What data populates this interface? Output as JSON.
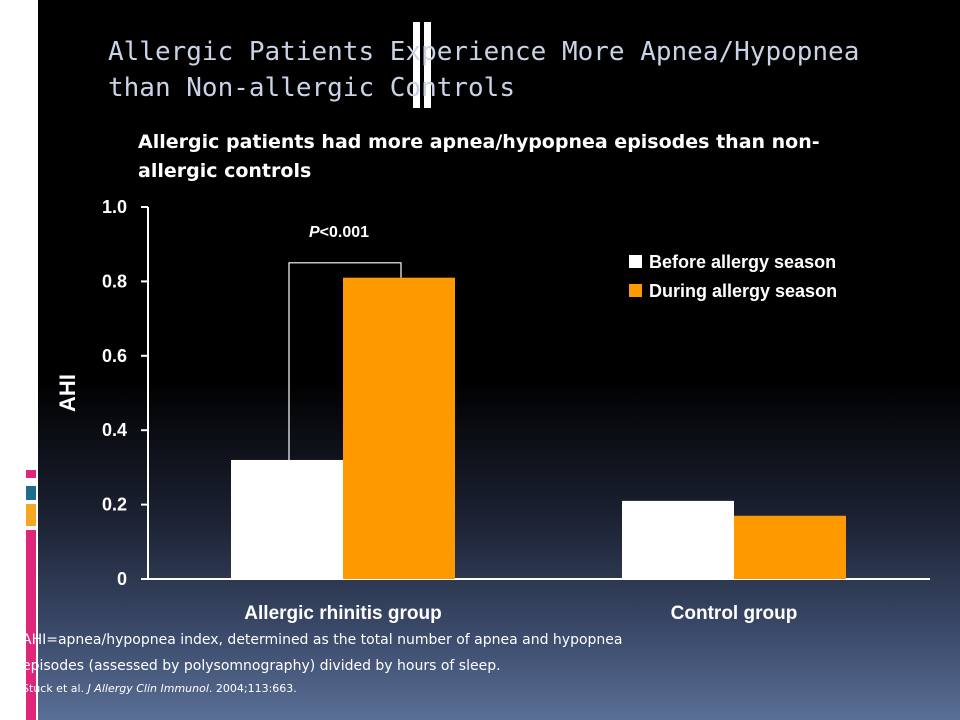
{
  "slide": {
    "title": "Allergic Patients Experience More Apnea/Hypopnea than Non-allergic Controls",
    "subtitle": "Allergic patients had more apnea/hypopnea episodes than non-allergic controls",
    "footnote_line1": "AHI=apnea/hypopnea index, determined as the total number of apnea and hypopnea",
    "footnote_line2": "episodes (assessed by polysomnography) divided by hours of sleep.",
    "citation_authors": "Stuck et al. ",
    "citation_journal": "J Allergy Clin Immunol",
    "citation_rest": ". 2004;113:663.",
    "accent_colors": {
      "orange": "#ff9900",
      "pink": "#e0267a",
      "teal": "#1f6d8c",
      "gold": "#f5a623"
    }
  },
  "chart_data": {
    "type": "bar",
    "categories": [
      "Allergic rhinitis group",
      "Control group"
    ],
    "series": [
      {
        "name": "Before allergy season",
        "values": [
          0.32,
          0.21
        ],
        "color": "#ffffff"
      },
      {
        "name": "During allergy season",
        "values": [
          0.81,
          0.17
        ],
        "color": "#ff9900"
      }
    ],
    "ylabel": "AHI",
    "xlabel": "",
    "ylim": [
      0,
      1.0
    ],
    "yticks": [
      0,
      0.2,
      0.4,
      0.6,
      0.8,
      1.0
    ],
    "ytick_labels": [
      "0",
      "0.2",
      "0.4",
      "0.6",
      "0.8",
      "1.0"
    ],
    "annotation": {
      "prefix": "P",
      "text": "<0.001",
      "bracket_top_value": 0.85
    },
    "legend_position": "top-right",
    "grid": false
  }
}
